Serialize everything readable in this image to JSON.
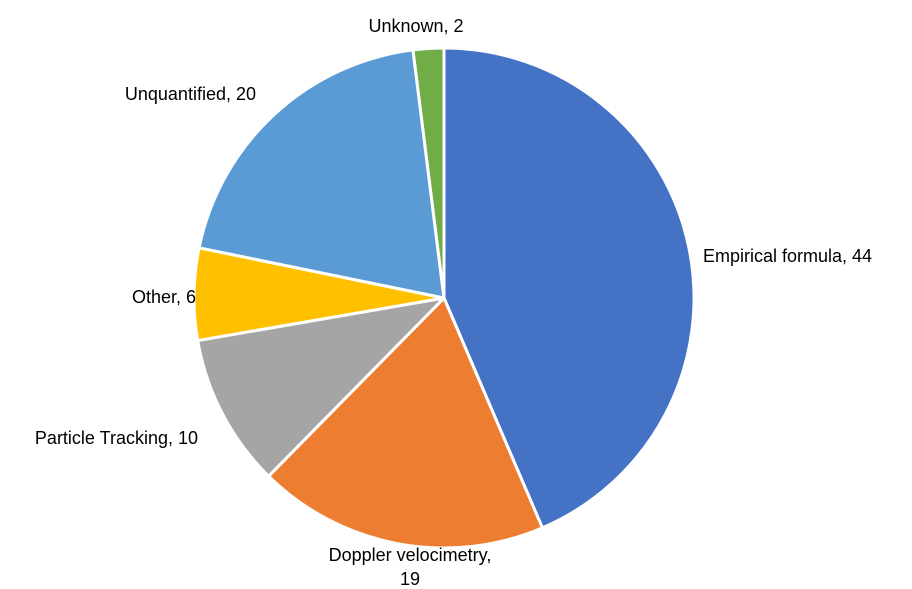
{
  "chart_data": {
    "type": "pie",
    "title": "",
    "slices": [
      {
        "label": "Empirical formula",
        "value": 44,
        "color": "#4472C4",
        "label_text": [
          "Empirical formula, 44"
        ]
      },
      {
        "label": "Doppler velocimetry",
        "value": 19,
        "color": "#ED7D31",
        "label_text": [
          "Doppler velocimetry,",
          "19"
        ]
      },
      {
        "label": "Particle Tracking",
        "value": 10,
        "color": "#A5A5A5",
        "label_text": [
          "Particle Tracking, 10"
        ]
      },
      {
        "label": "Other",
        "value": 6,
        "color": "#FFC000",
        "label_text": [
          "Other, 6"
        ]
      },
      {
        "label": "Unquantified",
        "value": 20,
        "color": "#5B9BD5",
        "label_text": [
          "Unquantified, 20"
        ]
      },
      {
        "label": "Unknown",
        "value": 2,
        "color": "#70AD47",
        "label_text": [
          "Unknown, 2"
        ]
      }
    ],
    "legend": "none",
    "start_angle": "12 o'clock",
    "direction": "clockwise"
  }
}
